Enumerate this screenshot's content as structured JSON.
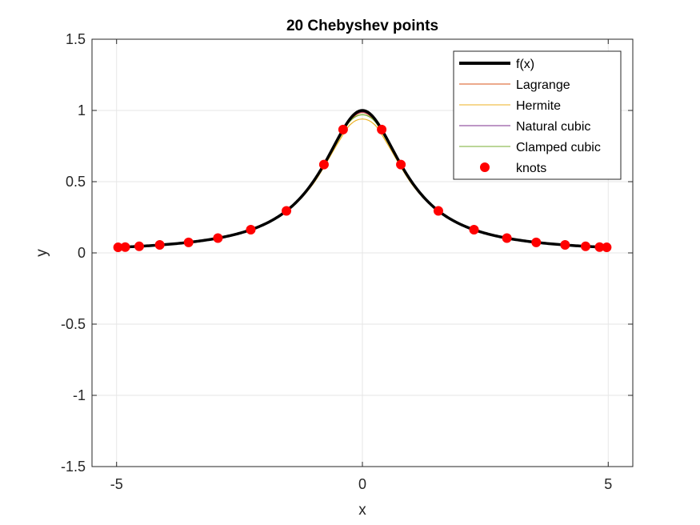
{
  "chart_data": {
    "type": "line",
    "title": "20 Chebyshev points",
    "xlabel": "x",
    "ylabel": "y",
    "xlim": [
      -5.5,
      5.5
    ],
    "ylim": [
      -1.5,
      1.5
    ],
    "xticks": [
      -5,
      0,
      5
    ],
    "xtick_labels": [
      "-5",
      "0",
      "5"
    ],
    "yticks": [
      -1.5,
      -1,
      -0.5,
      0,
      0.5,
      1,
      1.5
    ],
    "ytick_labels": [
      "-1.5",
      "-1",
      "-0.5",
      "0",
      "0.5",
      "1",
      "1.5"
    ],
    "grid": true,
    "legend_position": "top-right",
    "series": [
      {
        "name": "f(x)",
        "color": "#000000",
        "function": "1/(1+x^2)",
        "x": [
          -5,
          -4.5,
          -4,
          -3.5,
          -3,
          -2.5,
          -2,
          -1.75,
          -1.5,
          -1.25,
          -1,
          -0.75,
          -0.5,
          -0.25,
          0,
          0.25,
          0.5,
          0.75,
          1,
          1.25,
          1.5,
          1.75,
          2,
          2.5,
          3,
          3.5,
          4,
          4.5,
          5
        ],
        "y": [
          0.038,
          0.047,
          0.059,
          0.075,
          0.1,
          0.138,
          0.2,
          0.246,
          0.308,
          0.39,
          0.5,
          0.64,
          0.8,
          0.941,
          1.0,
          0.941,
          0.8,
          0.64,
          0.5,
          0.39,
          0.308,
          0.246,
          0.2,
          0.138,
          0.1,
          0.075,
          0.059,
          0.047,
          0.038
        ]
      },
      {
        "name": "Lagrange",
        "color": "#D95319",
        "x": [
          -5,
          -4.5,
          -4,
          -3.5,
          -3,
          -2.5,
          -2,
          -1.5,
          -1,
          -0.5,
          -0.25,
          0,
          0.25,
          0.5,
          1,
          1.5,
          2,
          2.5,
          3,
          3.5,
          4,
          4.5,
          5
        ],
        "y": [
          0.038,
          0.046,
          0.059,
          0.075,
          0.1,
          0.137,
          0.2,
          0.305,
          0.496,
          0.79,
          0.93,
          0.985,
          0.93,
          0.79,
          0.496,
          0.305,
          0.2,
          0.137,
          0.1,
          0.075,
          0.059,
          0.046,
          0.038
        ]
      },
      {
        "name": "Hermite",
        "color": "#EDB120",
        "x": [
          -5,
          -4.5,
          -4,
          -3.5,
          -3,
          -2.5,
          -2,
          -1.5,
          -1,
          -0.5,
          -0.25,
          0,
          0.25,
          0.5,
          1,
          1.5,
          2,
          2.5,
          3,
          3.5,
          4,
          4.5,
          5
        ],
        "y": [
          0.038,
          0.047,
          0.059,
          0.074,
          0.099,
          0.136,
          0.198,
          0.3,
          0.485,
          0.77,
          0.9,
          0.94,
          0.9,
          0.77,
          0.485,
          0.3,
          0.198,
          0.136,
          0.099,
          0.074,
          0.059,
          0.047,
          0.038
        ]
      },
      {
        "name": "Natural cubic",
        "color": "#7E2F8E",
        "x": [
          -5,
          -4.5,
          -4,
          -3.5,
          -3,
          -2.5,
          -2,
          -1.5,
          -1,
          -0.5,
          -0.25,
          0,
          0.25,
          0.5,
          1,
          1.5,
          2,
          2.5,
          3,
          3.5,
          4,
          4.5,
          5
        ],
        "y": [
          0.038,
          0.047,
          0.059,
          0.075,
          0.1,
          0.138,
          0.2,
          0.306,
          0.497,
          0.795,
          0.935,
          0.99,
          0.935,
          0.795,
          0.497,
          0.306,
          0.2,
          0.138,
          0.1,
          0.075,
          0.059,
          0.047,
          0.038
        ]
      },
      {
        "name": "Clamped cubic",
        "color": "#77AC30",
        "x": [
          -5,
          -4.5,
          -4,
          -3.5,
          -3,
          -2.5,
          -2,
          -1.5,
          -1,
          -0.5,
          -0.25,
          0,
          0.25,
          0.5,
          1,
          1.5,
          2,
          2.5,
          3,
          3.5,
          4,
          4.5,
          5
        ],
        "y": [
          0.038,
          0.047,
          0.059,
          0.075,
          0.1,
          0.138,
          0.2,
          0.304,
          0.492,
          0.785,
          0.925,
          0.97,
          0.925,
          0.785,
          0.492,
          0.304,
          0.2,
          0.138,
          0.1,
          0.075,
          0.059,
          0.047,
          0.038
        ]
      }
    ],
    "knots": {
      "name": "knots",
      "color": "#FF0000",
      "x": [
        -4.9692,
        -4.8246,
        -4.5399,
        -4.1227,
        -3.5355,
        -2.9389,
        -2.27,
        -1.5451,
        -0.7822,
        -0.3923,
        0.3923,
        0.7822,
        1.5451,
        2.27,
        2.9389,
        3.5355,
        4.1227,
        4.5399,
        4.8246,
        4.9692
      ],
      "y": [
        0.039,
        0.041,
        0.046,
        0.056,
        0.074,
        0.104,
        0.163,
        0.295,
        0.62,
        0.866,
        0.866,
        0.62,
        0.295,
        0.163,
        0.104,
        0.074,
        0.056,
        0.046,
        0.041,
        0.039
      ]
    }
  }
}
